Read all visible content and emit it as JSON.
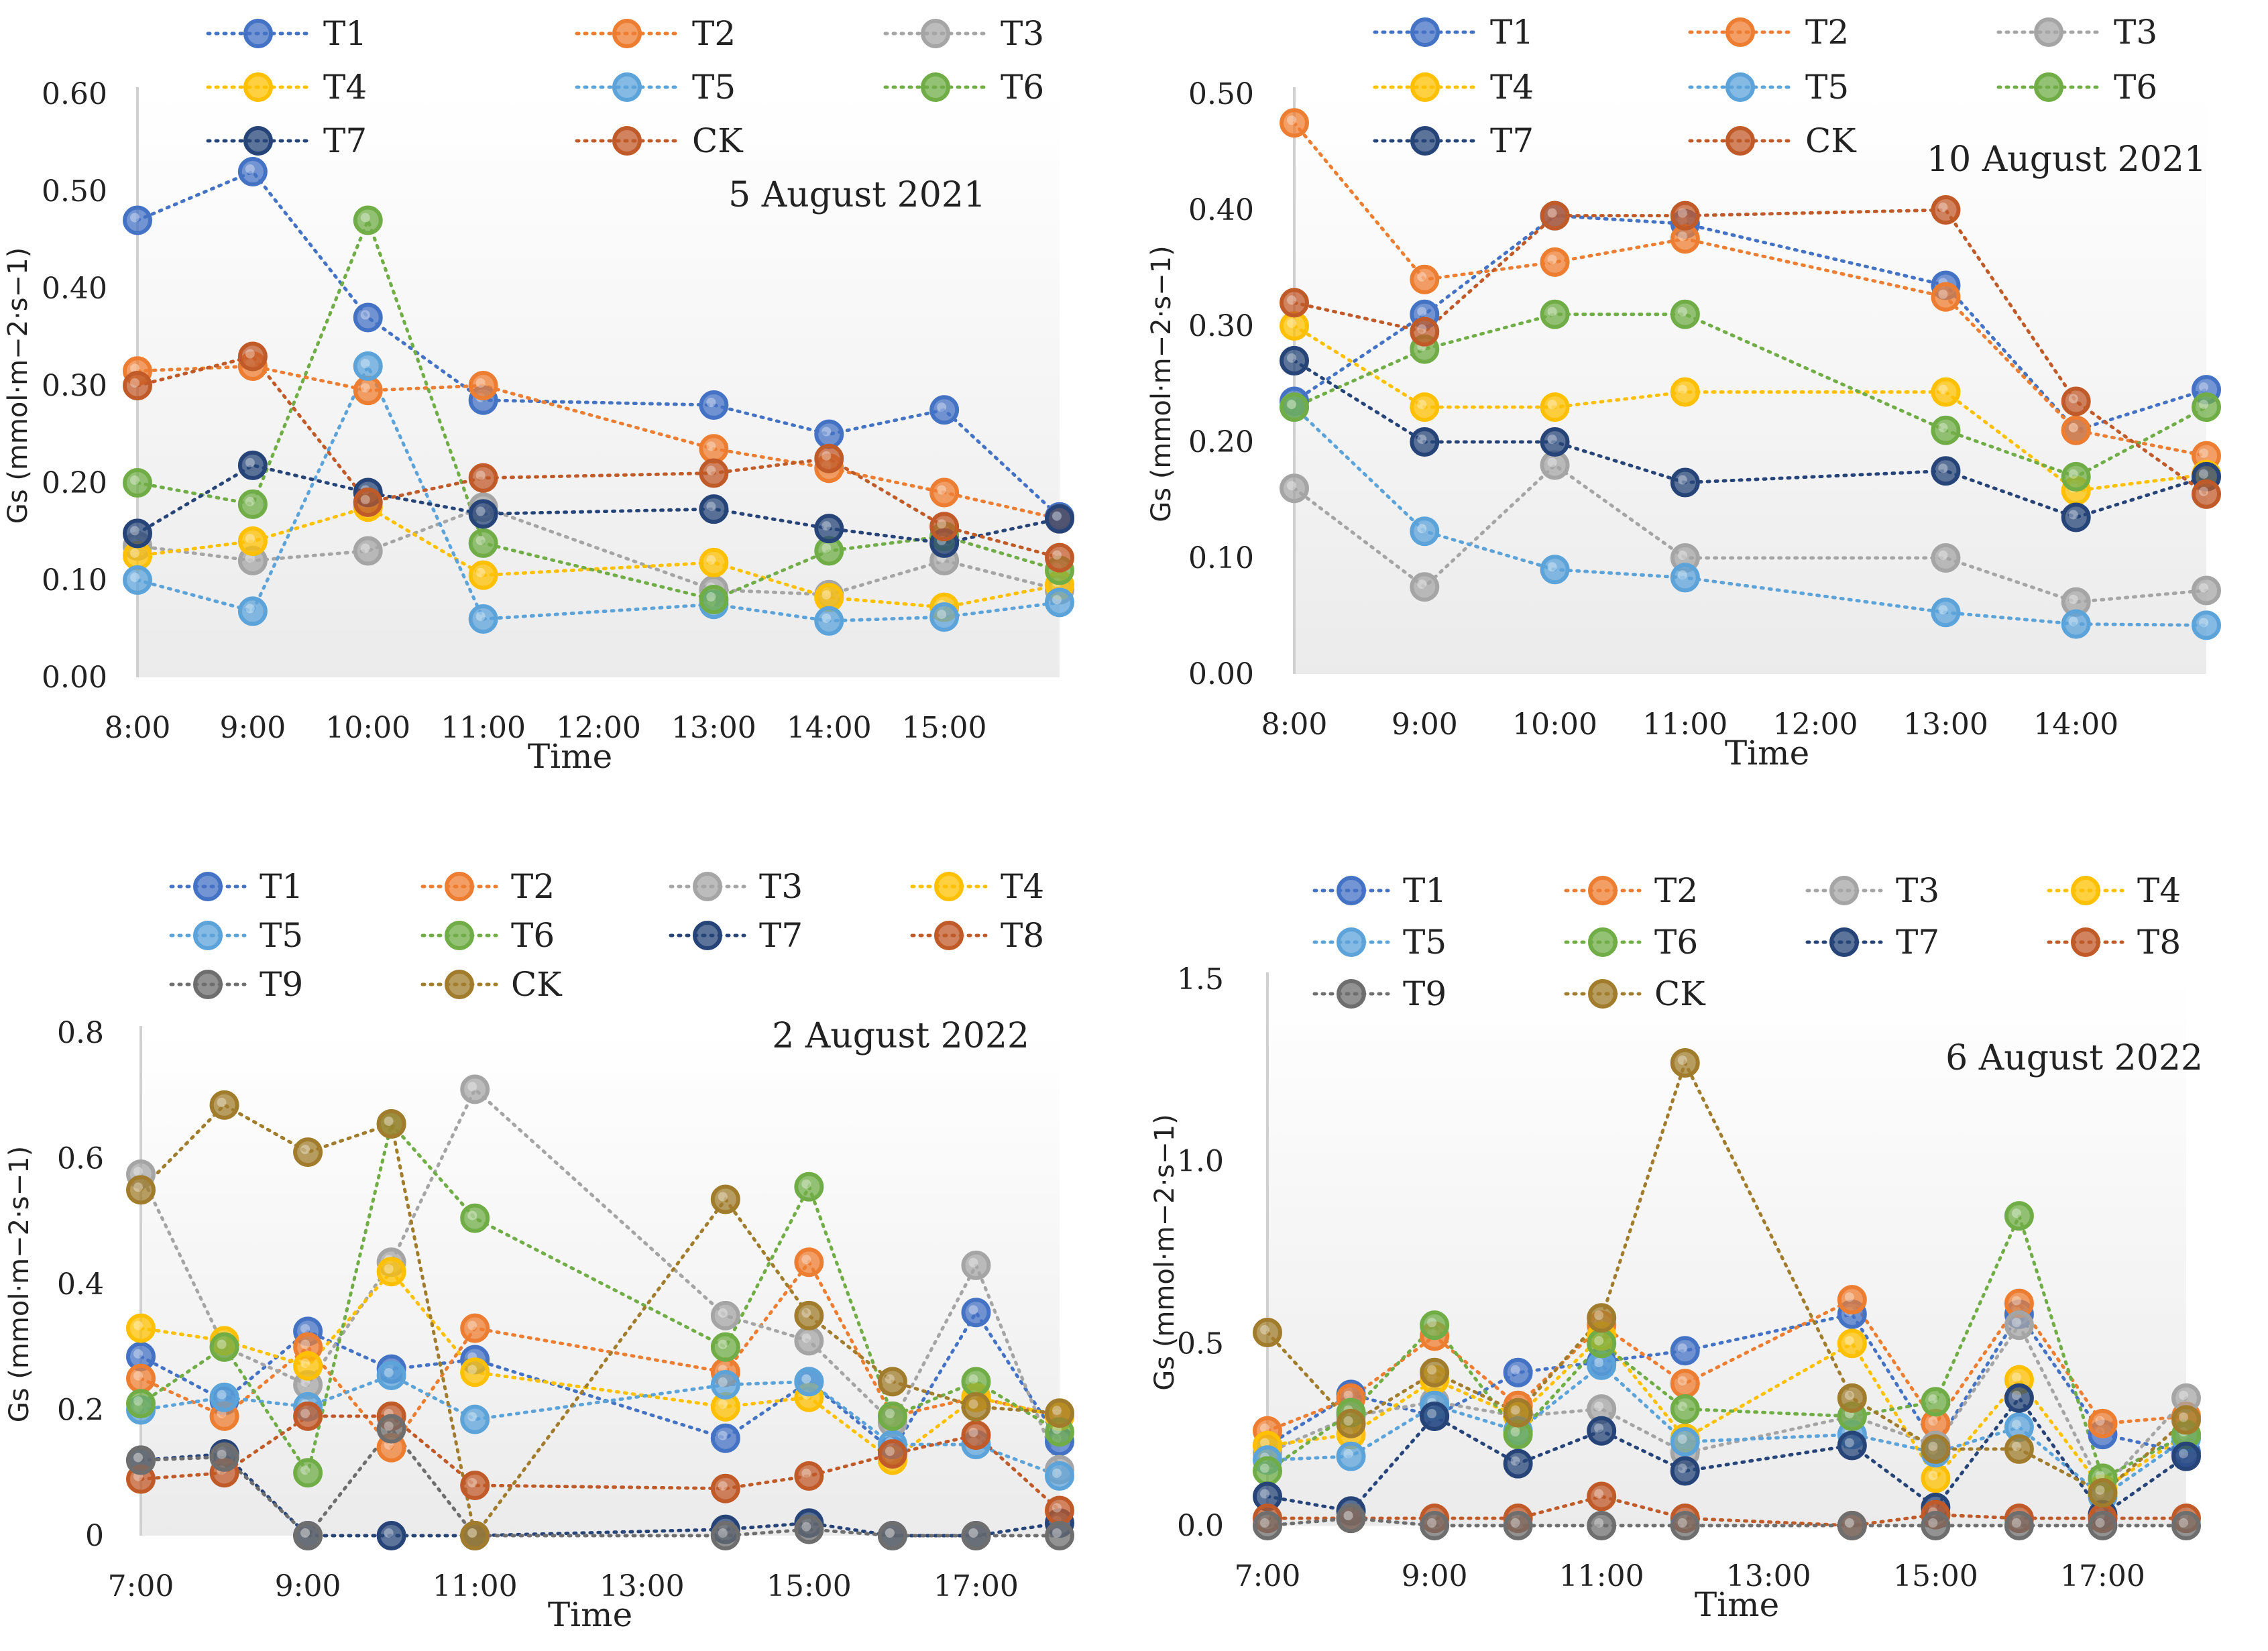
{
  "figure_caption": "",
  "chart_data": [
    {
      "type": "line",
      "title": "5 August 2021",
      "xlabel": "Time",
      "ylabel": "Gs (mmol·m−2·s−1)",
      "ylim": [
        0,
        0.6
      ],
      "yticks": [
        "0.00",
        "0.10",
        "0.20",
        "0.30",
        "0.40",
        "0.50",
        "0.60"
      ],
      "xlim": [
        8,
        16
      ],
      "xticks": [
        "8:00",
        "9:00",
        "10:00",
        "11:00",
        "12:00",
        "13:00",
        "14:00",
        "15:00"
      ],
      "x": [
        8,
        9,
        10,
        11,
        13,
        14,
        15,
        16
      ],
      "series": [
        {
          "name": "T1",
          "color": "#4472C4",
          "values": [
            0.47,
            0.52,
            0.37,
            0.285,
            0.28,
            0.25,
            0.275,
            0.165
          ]
        },
        {
          "name": "T2",
          "color": "#ED7D31",
          "values": [
            0.315,
            0.32,
            0.295,
            0.3,
            0.235,
            0.215,
            0.19,
            0.163
          ]
        },
        {
          "name": "T3",
          "color": "#A5A5A5",
          "values": [
            0.135,
            0.12,
            0.13,
            0.175,
            0.09,
            0.085,
            0.12,
            0.09
          ]
        },
        {
          "name": "T4",
          "color": "#FFC000",
          "values": [
            0.125,
            0.14,
            0.175,
            0.105,
            0.118,
            0.082,
            0.072,
            0.095
          ]
        },
        {
          "name": "T5",
          "color": "#5BA3D9",
          "values": [
            0.1,
            0.068,
            0.32,
            0.06,
            0.075,
            0.058,
            0.062,
            0.077
          ]
        },
        {
          "name": "T6",
          "color": "#70AD47",
          "values": [
            0.2,
            0.178,
            0.47,
            0.138,
            0.08,
            0.13,
            0.145,
            0.11
          ]
        },
        {
          "name": "T7",
          "color": "#264478",
          "values": [
            0.148,
            0.218,
            0.19,
            0.168,
            0.173,
            0.153,
            0.138,
            0.163
          ]
        },
        {
          "name": "CK",
          "color": "#C05A28",
          "values": [
            0.3,
            0.33,
            0.18,
            0.205,
            0.21,
            0.225,
            0.155,
            0.123
          ]
        }
      ]
    },
    {
      "type": "line",
      "title": "10 August 2021",
      "xlabel": "Time",
      "ylabel": "Gs (mmol·m−2·s−1)",
      "ylim": [
        0,
        0.5
      ],
      "yticks": [
        "0.00",
        "0.10",
        "0.20",
        "0.30",
        "0.40",
        "0.50"
      ],
      "xlim": [
        8,
        15
      ],
      "xticks": [
        "8:00",
        "9:00",
        "10:00",
        "11:00",
        "12:00",
        "13:00",
        "14:00"
      ],
      "x": [
        8,
        9,
        10,
        11,
        13,
        14,
        15
      ],
      "series": [
        {
          "name": "T1",
          "color": "#4472C4",
          "values": [
            0.235,
            0.31,
            0.395,
            0.388,
            0.335,
            0.21,
            0.245
          ]
        },
        {
          "name": "T2",
          "color": "#ED7D31",
          "values": [
            0.475,
            0.34,
            0.355,
            0.375,
            0.325,
            0.21,
            0.188
          ]
        },
        {
          "name": "T3",
          "color": "#A5A5A5",
          "values": [
            0.16,
            0.075,
            0.18,
            0.1,
            0.1,
            0.062,
            0.072
          ]
        },
        {
          "name": "T4",
          "color": "#FFC000",
          "values": [
            0.3,
            0.23,
            0.23,
            0.243,
            0.243,
            0.158,
            0.172
          ]
        },
        {
          "name": "T5",
          "color": "#5BA3D9",
          "values": [
            0.23,
            0.123,
            0.09,
            0.083,
            0.053,
            0.043,
            0.042
          ]
        },
        {
          "name": "T6",
          "color": "#70AD47",
          "values": [
            0.23,
            0.28,
            0.31,
            0.31,
            0.21,
            0.17,
            0.23
          ]
        },
        {
          "name": "T7",
          "color": "#264478",
          "values": [
            0.27,
            0.2,
            0.2,
            0.165,
            0.175,
            0.135,
            0.17
          ]
        },
        {
          "name": "CK",
          "color": "#C05A28",
          "values": [
            0.32,
            0.295,
            0.395,
            0.395,
            0.4,
            0.235,
            0.155
          ]
        }
      ]
    },
    {
      "type": "line",
      "title": "2 August 2022",
      "xlabel": "Time",
      "ylabel": "Gs (mmol·m−2·s−1)",
      "ylim": [
        0,
        0.8
      ],
      "yticks": [
        "0",
        "0.2",
        "0.4",
        "0.6",
        "0.8"
      ],
      "xlim": [
        7,
        18
      ],
      "xticks": [
        "7:00",
        "9:00",
        "11:00",
        "13:00",
        "15:00",
        "17:00"
      ],
      "x": [
        7,
        8,
        9,
        10,
        11,
        14,
        15,
        16,
        17,
        18
      ],
      "series": [
        {
          "name": "T1",
          "color": "#4472C4",
          "values": [
            0.285,
            0.215,
            0.325,
            0.265,
            0.28,
            0.155,
            0.245,
            0.135,
            0.355,
            0.15
          ]
        },
        {
          "name": "T2",
          "color": "#ED7D31",
          "values": [
            0.25,
            0.19,
            0.3,
            0.14,
            0.33,
            0.26,
            0.435,
            0.19,
            0.22,
            0.19
          ]
        },
        {
          "name": "T3",
          "color": "#A5A5A5",
          "values": [
            0.575,
            0.3,
            0.24,
            0.435,
            0.71,
            0.35,
            0.31,
            0.18,
            0.43,
            0.105
          ]
        },
        {
          "name": "T4",
          "color": "#FFC000",
          "values": [
            0.33,
            0.31,
            0.27,
            0.42,
            0.26,
            0.205,
            0.22,
            0.12,
            0.22,
            0.19
          ]
        },
        {
          "name": "T5",
          "color": "#5BA3D9",
          "values": [
            0.2,
            0.22,
            0.205,
            0.255,
            0.185,
            0.24,
            0.245,
            0.145,
            0.145,
            0.095
          ]
        },
        {
          "name": "T6",
          "color": "#70AD47",
          "values": [
            0.21,
            0.3,
            0.1,
            0.655,
            0.505,
            0.3,
            0.555,
            0.19,
            0.245,
            0.165
          ]
        },
        {
          "name": "T7",
          "color": "#264478",
          "values": [
            0.12,
            0.13,
            0.0,
            0.0,
            0.0,
            0.01,
            0.02,
            0.0,
            0.0,
            0.02
          ]
        },
        {
          "name": "T8",
          "color": "#C05A28",
          "values": [
            0.09,
            0.1,
            0.19,
            0.19,
            0.08,
            0.075,
            0.095,
            0.13,
            0.16,
            0.04
          ]
        },
        {
          "name": "T9",
          "color": "#6E6E6E",
          "values": [
            0.12,
            0.125,
            0.0,
            0.17,
            0.0,
            0.0,
            0.01,
            0.0,
            0.0,
            0.0
          ]
        },
        {
          "name": "CK",
          "color": "#A07C2C",
          "values": [
            0.55,
            0.685,
            0.61,
            0.655,
            0.0,
            0.535,
            0.35,
            0.245,
            0.205,
            0.195
          ]
        }
      ]
    },
    {
      "type": "line",
      "title": "6 August 2022",
      "xlabel": "Time",
      "ylabel": "Gs (mmol·m−2·s−1)",
      "ylim": [
        0,
        1.5
      ],
      "yticks": [
        "0.0",
        "0.5",
        "1.0",
        "1.5"
      ],
      "xlim": [
        7,
        18
      ],
      "xticks": [
        "7:00",
        "9:00",
        "11:00",
        "13:00",
        "15:00",
        "17:00"
      ],
      "x": [
        7,
        8,
        9,
        10,
        11,
        12,
        14,
        15,
        16,
        17,
        18
      ],
      "series": [
        {
          "name": "T1",
          "color": "#4472C4",
          "values": [
            0.22,
            0.36,
            0.3,
            0.42,
            0.45,
            0.48,
            0.58,
            0.22,
            0.58,
            0.25,
            0.2
          ]
        },
        {
          "name": "T2",
          "color": "#ED7D31",
          "values": [
            0.26,
            0.35,
            0.52,
            0.33,
            0.55,
            0.39,
            0.62,
            0.28,
            0.61,
            0.28,
            0.3
          ]
        },
        {
          "name": "T3",
          "color": "#A5A5A5",
          "values": [
            0.2,
            0.3,
            0.34,
            0.3,
            0.32,
            0.2,
            0.3,
            0.22,
            0.55,
            0.1,
            0.35
          ]
        },
        {
          "name": "T4",
          "color": "#FFC000",
          "values": [
            0.22,
            0.25,
            0.4,
            0.3,
            0.52,
            0.24,
            0.5,
            0.13,
            0.4,
            0.1,
            0.25
          ]
        },
        {
          "name": "T5",
          "color": "#5BA3D9",
          "values": [
            0.18,
            0.19,
            0.33,
            0.26,
            0.44,
            0.23,
            0.25,
            0.2,
            0.27,
            0.08,
            0.24
          ]
        },
        {
          "name": "T6",
          "color": "#70AD47",
          "values": [
            0.15,
            0.31,
            0.55,
            0.25,
            0.5,
            0.32,
            0.3,
            0.34,
            0.85,
            0.13,
            0.25
          ]
        },
        {
          "name": "T7",
          "color": "#264478",
          "values": [
            0.08,
            0.04,
            0.3,
            0.17,
            0.26,
            0.15,
            0.22,
            0.05,
            0.35,
            0.03,
            0.19
          ]
        },
        {
          "name": "T8",
          "color": "#C05A28",
          "values": [
            0.02,
            0.02,
            0.02,
            0.02,
            0.08,
            0.02,
            0.0,
            0.03,
            0.02,
            0.02,
            0.02
          ]
        },
        {
          "name": "T9",
          "color": "#6E6E6E",
          "values": [
            0.0,
            0.02,
            0.0,
            0.0,
            0.0,
            0.0,
            0.0,
            0.0,
            0.0,
            0.0,
            0.0
          ]
        },
        {
          "name": "CK",
          "color": "#A07C2C",
          "values": [
            0.53,
            0.28,
            0.42,
            0.31,
            0.57,
            1.27,
            0.35,
            0.21,
            0.21,
            0.09,
            0.29
          ]
        }
      ]
    }
  ]
}
